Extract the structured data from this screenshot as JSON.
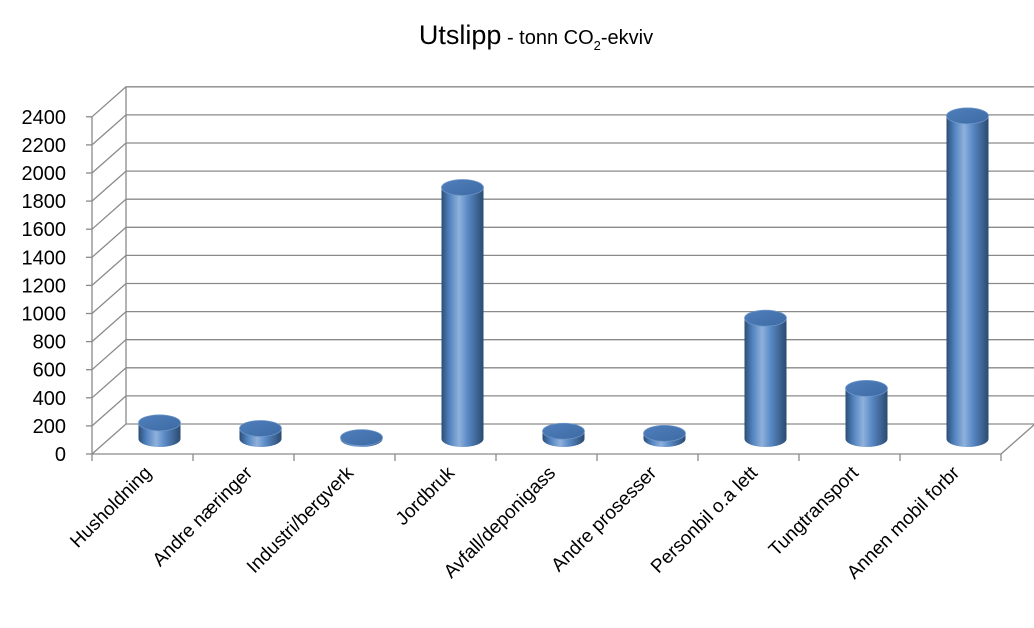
{
  "chart_data": {
    "type": "bar",
    "style": "3d-cylinder",
    "title": {
      "main": "Utslipp",
      "sub_before": " - tonn CO",
      "subscript": "2",
      "sub_after": "-ekviv"
    },
    "xlabel": "",
    "ylabel": "",
    "ylim": [
      0,
      2400
    ],
    "yticks": [
      0,
      200,
      400,
      600,
      800,
      1000,
      1200,
      1400,
      1600,
      1800,
      2000,
      2200,
      2400
    ],
    "grid": true,
    "legend": "none",
    "categories": [
      "Husholdning",
      "Andre næringer",
      "Industri/bergverk",
      "Jordbruk",
      "Avfall/deponigass",
      "Andre prosesser",
      "Personbil o.a lett",
      "Tungtransport",
      "Annen mobil forbr"
    ],
    "series": [
      {
        "values": [
          115,
          75,
          10,
          1790,
          55,
          40,
          860,
          360,
          2300
        ]
      }
    ],
    "colors": {
      "bar": "#4f81bd",
      "bar_dark": "#2c4d75",
      "bar_light": "#95b3d7",
      "grid": "#8a8a8a"
    }
  }
}
